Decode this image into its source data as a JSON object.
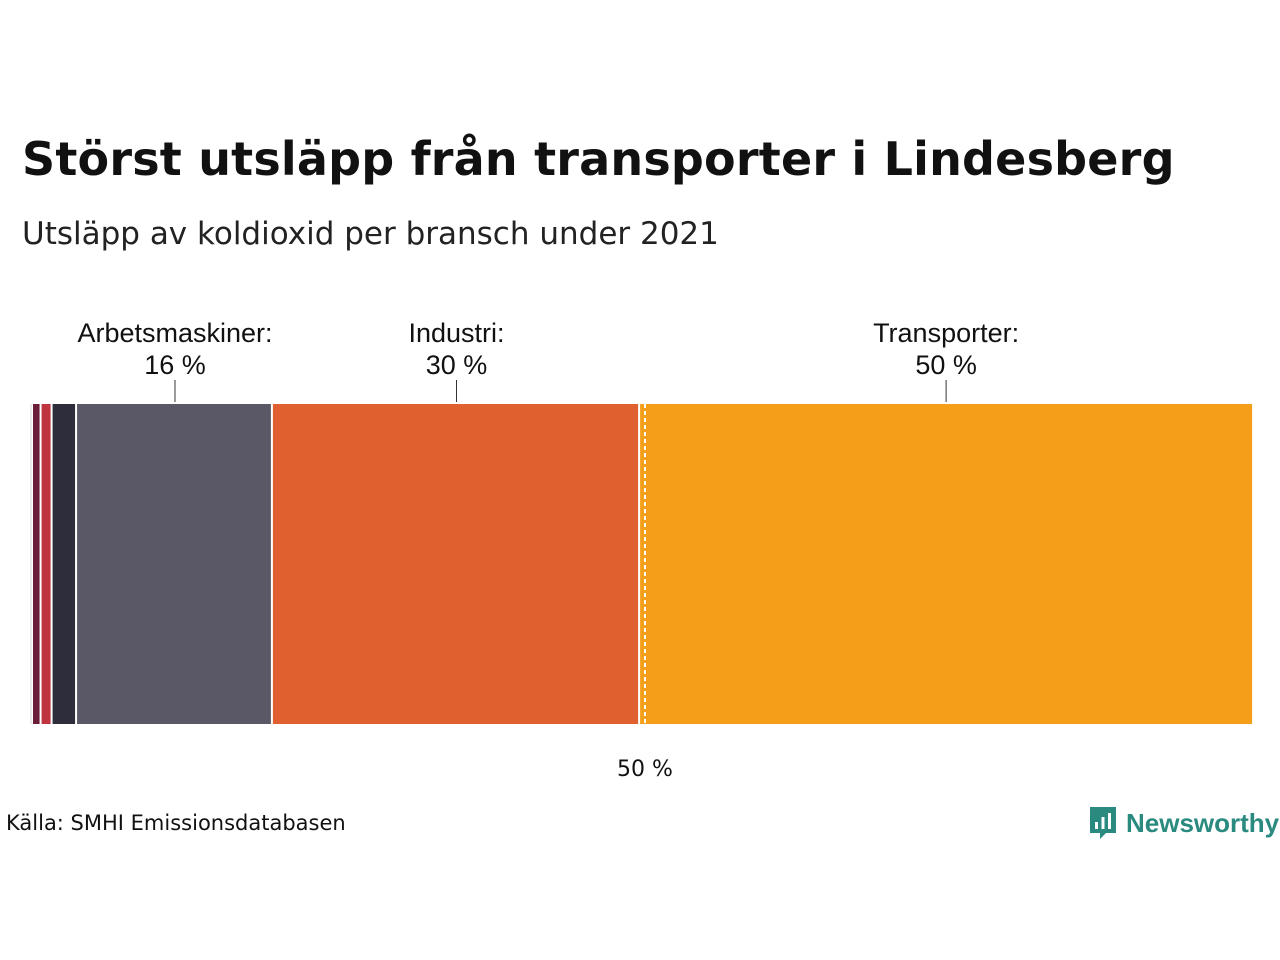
{
  "header": {
    "title": "Störst utsläpp från transporter i Lindesberg",
    "subtitle": "Utsläpp av koldioxid per bransch under 2021"
  },
  "footer": {
    "source": "Källa: SMHI Emissionsdatabasen",
    "brand": "Newsworthy",
    "brand_icon": "bar-chart-speech-bubble-icon"
  },
  "chart_data": {
    "type": "bar",
    "orientation": "horizontal-stacked-100-percent",
    "unit": "%",
    "segments": [
      {
        "category": "",
        "value": 0.7,
        "color": "#6b1e3a",
        "label": "",
        "value_label": ""
      },
      {
        "category": "",
        "value": 0.9,
        "color": "#c0343f",
        "label": "",
        "value_label": ""
      },
      {
        "category": "",
        "value": 2.0,
        "color": "#2d2d3c",
        "label": "",
        "value_label": ""
      },
      {
        "category": "Arbetsmaskiner",
        "value": 16,
        "color": "#5a5866",
        "label": "Arbetsmaskiner:",
        "value_label": "16 %"
      },
      {
        "category": "Industri",
        "value": 30,
        "color": "#e0602f",
        "label": "Industri:",
        "value_label": "30 %"
      },
      {
        "category": "Transporter",
        "value": 50,
        "color": "#f59e1a",
        "label": "Transporter:",
        "value_label": "50 %"
      }
    ],
    "reference_line": {
      "value": 50,
      "label": "50 %",
      "style": "dashed"
    },
    "xlim": [
      0,
      100
    ],
    "title": "Störst utsläpp från transporter i Lindesberg",
    "subtitle": "Utsläpp av koldioxid per bransch under 2021"
  }
}
